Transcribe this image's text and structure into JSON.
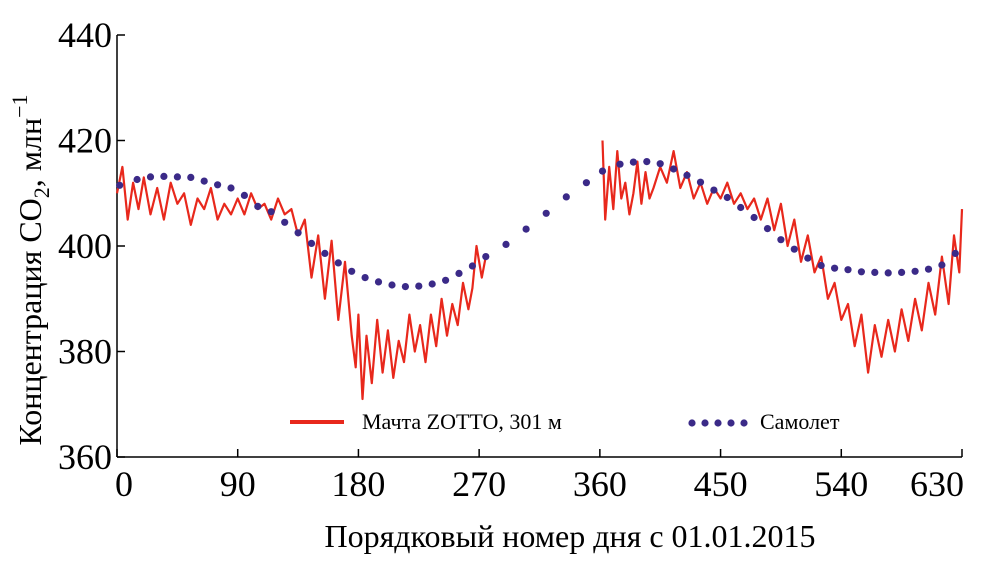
{
  "chart_data": {
    "type": "line",
    "title": "",
    "xlabel": "Порядковый номер дня с 01.01.2015",
    "ylabel_main": "Концентрация CO",
    "ylabel_sub": "2",
    "ylabel_rest": ", млн",
    "ylabel_sup": "−1",
    "xlim": [
      0,
      630
    ],
    "ylim": [
      360,
      440
    ],
    "xticks": [
      0,
      90,
      180,
      270,
      360,
      450,
      540,
      630
    ],
    "xtick_labels": [
      "0",
      "90",
      "180",
      "270",
      "360",
      "450",
      "540",
      "630"
    ],
    "yticks": [
      360,
      380,
      400,
      420,
      440
    ],
    "ytick_labels": [
      "360",
      "380",
      "400",
      "420",
      "440"
    ],
    "legend_position": "bottom-center",
    "series": [
      {
        "name": "Мачта ZOTTO, 301 м",
        "style": "line",
        "color": "#e8281c",
        "segments": [
          {
            "x": [
              0,
              4,
              8,
              12,
              16,
              20,
              25,
              30,
              35,
              40,
              45,
              50,
              55,
              60,
              65,
              70,
              75,
              80,
              85,
              90,
              95,
              100,
              105,
              110,
              115,
              120,
              125,
              130,
              135,
              140,
              145,
              150,
              155,
              160,
              165,
              170,
              175,
              178,
              180,
              183,
              186,
              190,
              194,
              198,
              202,
              206,
              210,
              214,
              218,
              222,
              226,
              230,
              234,
              238,
              242,
              246,
              250,
              254,
              258,
              262,
              265,
              268,
              272,
              275
            ],
            "y": [
              410,
              415,
              405,
              412,
              407,
              413,
              406,
              411,
              405,
              412,
              408,
              410,
              404,
              409,
              407,
              411,
              405,
              408,
              406,
              409,
              406,
              410,
              407,
              408,
              405,
              409,
              406,
              407,
              402,
              405,
              394,
              402,
              390,
              401,
              386,
              397,
              383,
              377,
              387,
              371,
              383,
              374,
              386,
              376,
              384,
              375,
              382,
              378,
              387,
              380,
              385,
              378,
              387,
              381,
              390,
              383,
              389,
              385,
              393,
              388,
              392,
              400,
              394,
              398
            ]
          },
          {
            "x": [
              362,
              364,
              367,
              370,
              373,
              376,
              379,
              382,
              385,
              388,
              391,
              394,
              397,
              400,
              405,
              410,
              415,
              420,
              425,
              430,
              435,
              440,
              445,
              450,
              455,
              460,
              465,
              470,
              475,
              480,
              485,
              490,
              495,
              500,
              505,
              510,
              515,
              520,
              525,
              530,
              535,
              540,
              545,
              550,
              555,
              560,
              565,
              570,
              575,
              580,
              585,
              590,
              595,
              600,
              605,
              610,
              615,
              620,
              624,
              628,
              630
            ],
            "y": [
              420,
              405,
              415,
              407,
              418,
              409,
              412,
              406,
              410,
              416,
              408,
              414,
              409,
              411,
              415,
              412,
              418,
              411,
              414,
              409,
              412,
              408,
              411,
              409,
              412,
              408,
              410,
              407,
              409,
              405,
              409,
              403,
              408,
              400,
              405,
              397,
              402,
              395,
              398,
              390,
              393,
              386,
              389,
              381,
              387,
              376,
              385,
              379,
              386,
              380,
              388,
              382,
              390,
              384,
              393,
              387,
              398,
              389,
              402,
              395,
              407
            ]
          }
        ]
      },
      {
        "name": "Самолет",
        "style": "dots",
        "color": "#3b2a88",
        "x": [
          2,
          15,
          25,
          35,
          45,
          55,
          65,
          75,
          85,
          95,
          105,
          115,
          125,
          135,
          145,
          155,
          165,
          175,
          185,
          195,
          205,
          215,
          225,
          235,
          245,
          255,
          265,
          275,
          290,
          305,
          320,
          335,
          350,
          362,
          375,
          385,
          395,
          405,
          415,
          425,
          435,
          445,
          455,
          465,
          475,
          485,
          495,
          505,
          515,
          525,
          535,
          545,
          555,
          565,
          575,
          585,
          595,
          605,
          615,
          625
        ],
        "y": [
          411.5,
          412.6,
          413.1,
          413.2,
          413.1,
          413.0,
          412.3,
          411.6,
          411.0,
          409.6,
          407.5,
          406.5,
          404.5,
          402.5,
          400.5,
          398.6,
          396.8,
          395.2,
          394.0,
          393.2,
          392.6,
          392.3,
          392.4,
          392.8,
          393.5,
          394.8,
          396.2,
          398.0,
          400.3,
          403.2,
          406.2,
          409.3,
          412.0,
          414.2,
          415.5,
          415.9,
          416.0,
          415.6,
          414.6,
          413.4,
          412.1,
          410.6,
          409.2,
          407.3,
          405.4,
          403.3,
          401.2,
          399.4,
          397.7,
          396.3,
          395.8,
          395.5,
          395.1,
          395.0,
          394.9,
          395.0,
          395.2,
          395.6,
          396.4,
          398.6
        ]
      }
    ]
  }
}
